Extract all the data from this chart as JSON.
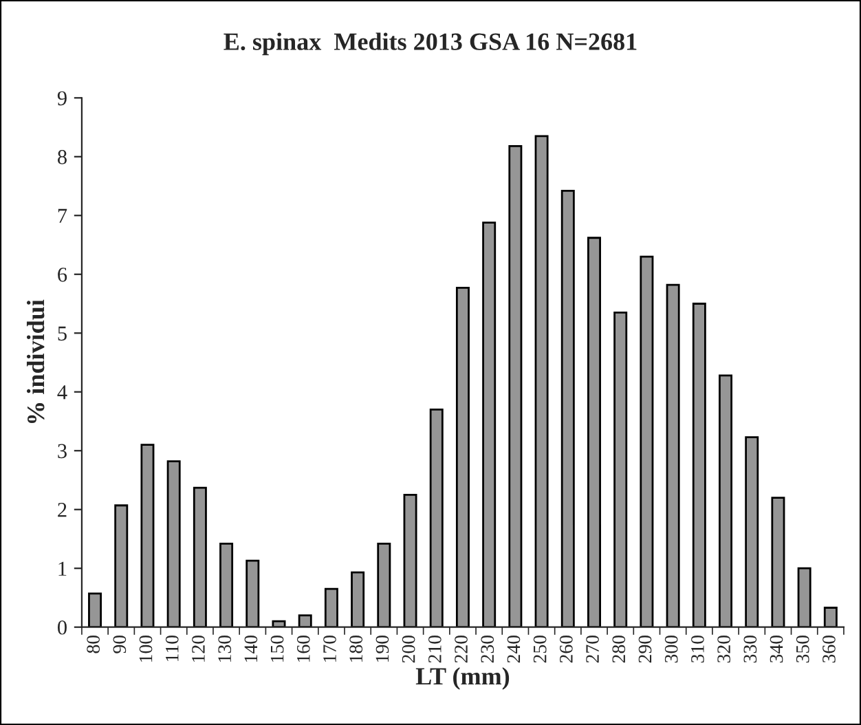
{
  "chart_data": {
    "type": "bar",
    "title": "E. spinax  Medits 2013 GSA 16 N=2681",
    "xlabel": "LT (mm)",
    "ylabel": "% individui",
    "categories": [
      "80",
      "90",
      "100",
      "110",
      "120",
      "130",
      "140",
      "150",
      "160",
      "170",
      "180",
      "190",
      "200",
      "210",
      "220",
      "230",
      "240",
      "250",
      "260",
      "270",
      "280",
      "290",
      "300",
      "310",
      "320",
      "330",
      "340",
      "350",
      "360"
    ],
    "values": [
      0.57,
      2.07,
      3.1,
      2.82,
      2.37,
      1.42,
      1.13,
      0.1,
      0.2,
      0.65,
      0.93,
      1.42,
      2.25,
      3.7,
      5.77,
      6.88,
      8.18,
      8.35,
      7.42,
      6.62,
      5.35,
      6.3,
      5.82,
      5.5,
      4.28,
      3.23,
      2.2,
      1.0,
      0.33
    ],
    "color": "#969696",
    "ylim": [
      0,
      9
    ],
    "yticks": [
      0,
      1,
      2,
      3,
      4,
      5,
      6,
      7,
      8,
      9
    ],
    "grid": false,
    "legend": false
  }
}
